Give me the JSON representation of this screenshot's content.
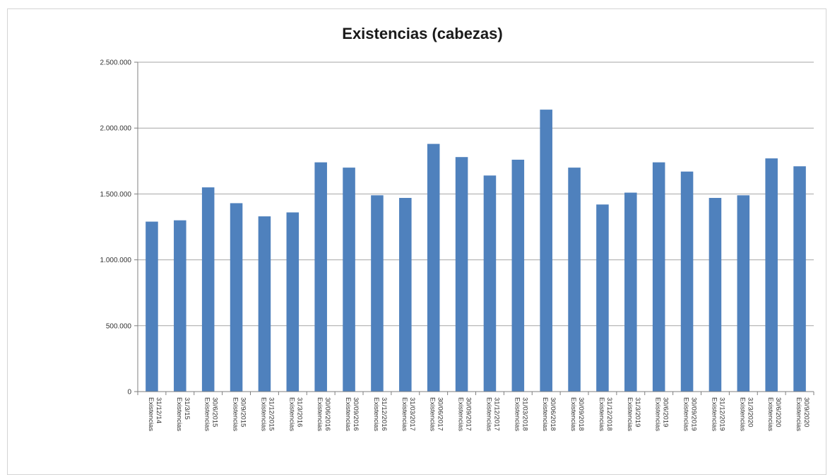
{
  "chart_data": {
    "type": "bar",
    "title": "Existencias (cabezas)",
    "xlabel": "",
    "ylabel": "",
    "ylim": [
      0,
      2500000
    ],
    "yticks": [
      0,
      500000,
      1000000,
      1500000,
      2000000,
      2500000
    ],
    "ytick_labels": [
      "0",
      "500.000",
      "1.000.000",
      "1.500.000",
      "2.000.000",
      "2.500.000"
    ],
    "grid": true,
    "legend": "none",
    "bar_color": "#4f81bd",
    "categories": [
      "31/12/14 Existencias",
      "31/3/15 Existencias",
      "30/6/2015 Existencias",
      "30/9/2015 Existencias",
      "31/12/2015 Existencias",
      "31/3/2016 Existencias",
      "30/06/2016 Existencias",
      "30/09/2016 Existencias",
      "31/12/2016 Existencias",
      "31/03/2017 Existencias",
      "30/06/2017 Existencias",
      "30/09/2017 Existencias",
      "31/12/2017 Existencias",
      "31/03/2018 Existencias",
      "30/06/2018 Existencias",
      "30/09/2018 Existencias",
      "31/12/2018 Existencias",
      "31/3/2019 Existencias",
      "30/6/2019 Existencias",
      "30/09/2019 Existencias",
      "31/12/2019 Existencias",
      "31/3/2020 Existencias",
      "30/6/2020 Existencias",
      "30/9/2020 Existencias"
    ],
    "values": [
      1290000,
      1300000,
      1550000,
      1430000,
      1330000,
      1360000,
      1740000,
      1700000,
      1490000,
      1470000,
      1880000,
      1780000,
      1640000,
      1760000,
      2140000,
      1700000,
      1420000,
      1510000,
      1740000,
      1670000,
      1470000,
      1490000,
      1770000,
      1710000
    ]
  }
}
